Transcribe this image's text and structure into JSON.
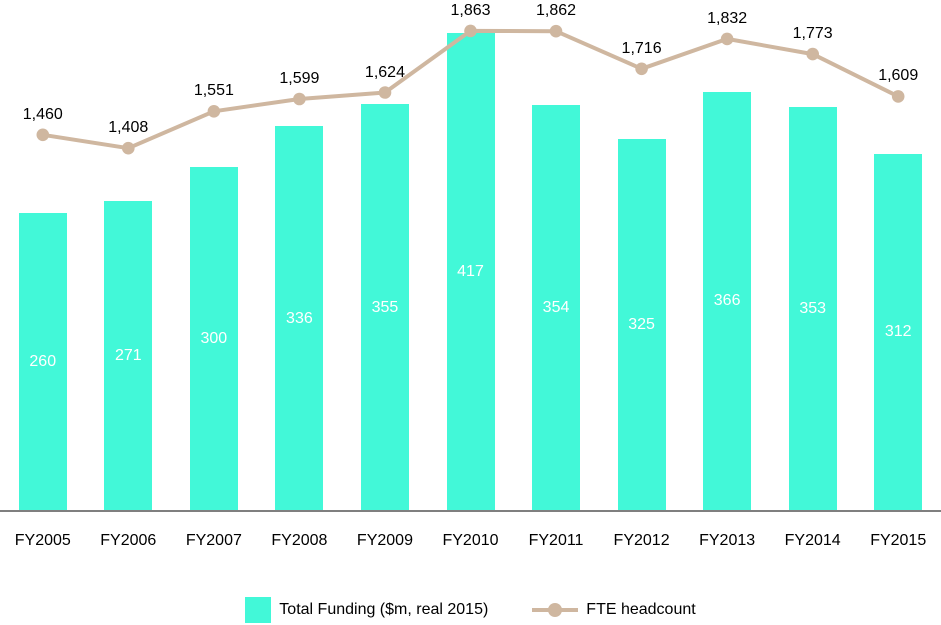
{
  "chart_data": {
    "type": "bar",
    "subtype": "combo-bar-line",
    "title": "",
    "xlabel": "",
    "ylabel": "",
    "grid": false,
    "legend_position": "bottom",
    "categories": [
      "FY2005",
      "FY2006",
      "FY2007",
      "FY2008",
      "FY2009",
      "FY2010",
      "FY2011",
      "FY2012",
      "FY2013",
      "FY2014",
      "FY2015"
    ],
    "series": [
      {
        "name": "Total Funding ($m, real 2015)",
        "type": "bar",
        "color": "#42f8d8",
        "values": [
          260,
          271,
          300,
          336,
          355,
          417,
          354,
          325,
          366,
          353,
          312
        ],
        "labels": [
          "260",
          "271",
          "300",
          "336",
          "355",
          "417",
          "354",
          "325",
          "366",
          "353",
          "312"
        ],
        "label_color": "#ffffff",
        "axis_range": [
          0,
          446
        ]
      },
      {
        "name": "FTE headcount",
        "type": "line",
        "color": "#cfb7a0",
        "values": [
          1460,
          1408,
          1551,
          1599,
          1624,
          1863,
          1862,
          1716,
          1832,
          1773,
          1609
        ],
        "labels": [
          "1,460",
          "1,408",
          "1,551",
          "1,599",
          "1,624",
          "1,863",
          "1,862",
          "1,716",
          "1,832",
          "1,773",
          "1,609"
        ],
        "label_color": "#000000",
        "axis_range": [
          0,
          1983
        ]
      }
    ],
    "axis_line_color": "#7f7f7f",
    "tick_label_color": "#000000"
  }
}
